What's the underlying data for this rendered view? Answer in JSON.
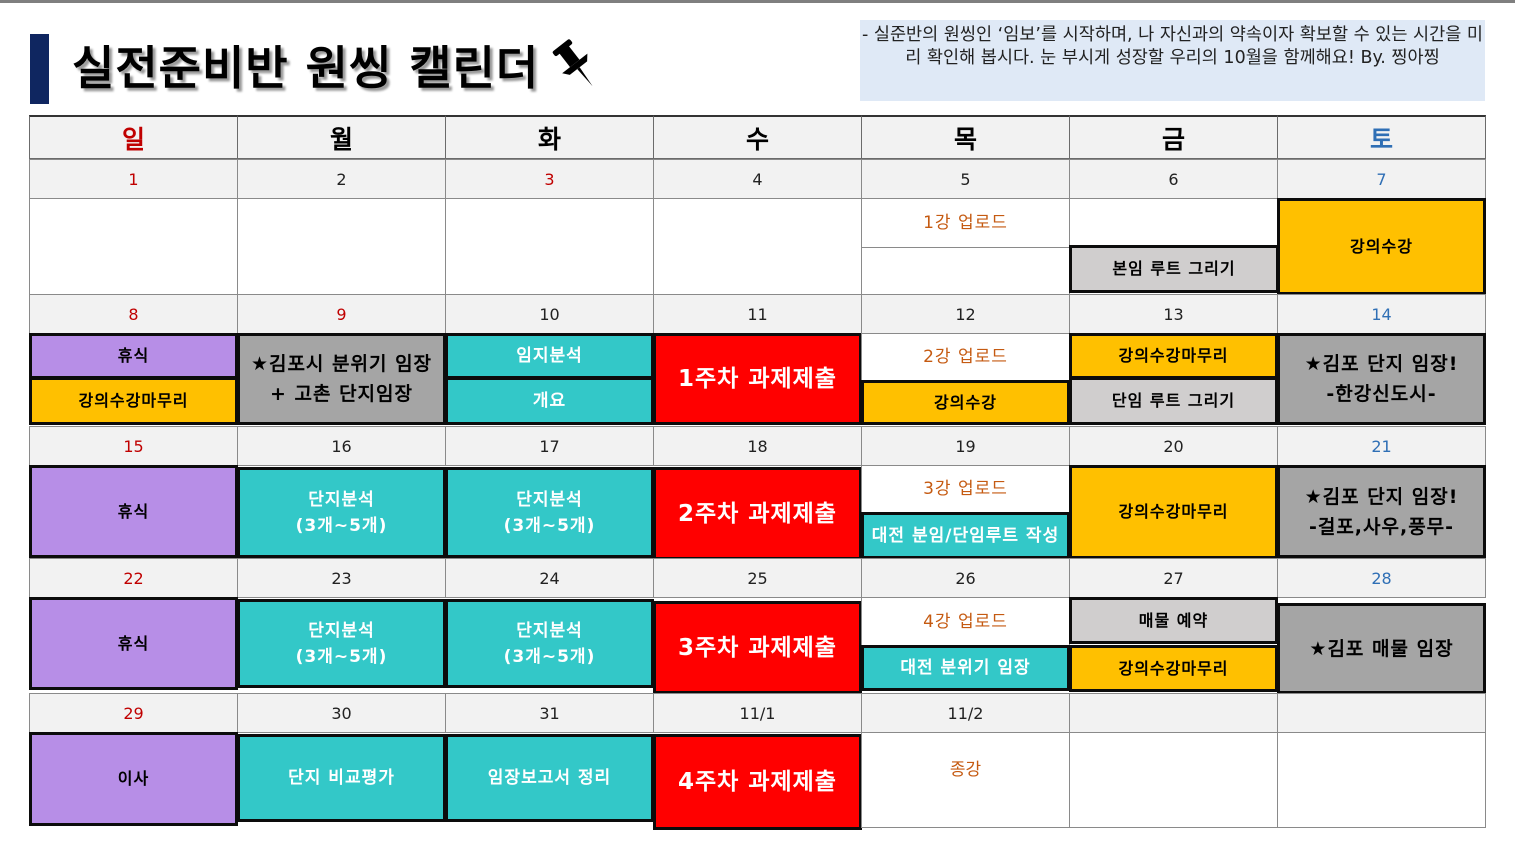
{
  "title": "실전준비반 원씽 캘린더",
  "note": "- 실준반의 원씽인 ‘임보’를 시작하며, 나 자신과의 약속이자 확보할 수 있는 시간을 미리 확인해 봅시다. 눈 부시게 성장할 우리의 10월을 함께해요! By. 찡아찡",
  "weekdays": [
    "일",
    "월",
    "화",
    "수",
    "목",
    "금",
    "토"
  ],
  "weeks": [
    {
      "dates": [
        "1",
        "2",
        "3",
        "4",
        "5",
        "6",
        "7"
      ]
    },
    {
      "dates": [
        "8",
        "9",
        "10",
        "11",
        "12",
        "13",
        "14"
      ]
    },
    {
      "dates": [
        "15",
        "16",
        "17",
        "18",
        "19",
        "20",
        "21"
      ]
    },
    {
      "dates": [
        "22",
        "23",
        "24",
        "25",
        "26",
        "27",
        "28"
      ]
    },
    {
      "dates": [
        "29",
        "30",
        "31",
        "11/1",
        "11/2",
        "",
        ""
      ]
    }
  ],
  "events": {
    "w1": {
      "thu": "1강 업로드",
      "fri": "본임 루트 그리기",
      "sat": "강의수강"
    },
    "w2": {
      "sun_a": "휴식",
      "sun_b": "강의수강마무리",
      "mon": "★김포시 분위기 임장\n+ 고촌 단지임장",
      "tue_a": "임지분석",
      "tue_b": "개요",
      "wed": "1주차 과제제출",
      "thu_a": "2강 업로드",
      "thu_b": "강의수강",
      "fri_a": "강의수강마무리",
      "fri_b": "단임 루트 그리기",
      "sat": "★김포 단지 임장!\n-한강신도시-"
    },
    "w3": {
      "sun": "휴식",
      "mon": "단지분석\n(3개~5개)",
      "tue": "단지분석\n(3개~5개)",
      "wed": "2주차 과제제출",
      "thu_a": "3강 업로드",
      "thu_b": "대전 분임/단임루트 작성",
      "fri": "강의수강마무리",
      "sat": "★김포 단지 임장!\n-걸포,사우,풍무-"
    },
    "w4": {
      "sun": "휴식",
      "mon": "단지분석\n(3개~5개)",
      "tue": "단지분석\n(3개~5개)",
      "wed": "3주차 과제제출",
      "thu_a": "4강 업로드",
      "thu_b": "대전 분위기 임장",
      "fri_a": "매물 예약",
      "fri_b": "강의수강마무리",
      "sat": "★김포 매물 임장"
    },
    "w5": {
      "sun": "이사",
      "mon": "단지 비교평가",
      "tue": "임장보고서 정리",
      "wed": "4주차 과제제출",
      "thu": "종강"
    }
  },
  "colors": {
    "rest": "#b78ee7",
    "lecture": "#ffc000",
    "field": "#a5a5a5",
    "route": "#d0cece",
    "analysis": "#33c8c8",
    "deadline": "#ff0000",
    "upload_text": "#c55a11",
    "sunday": "#c00000",
    "saturday": "#2f6fb5"
  },
  "icons": [
    "pushpin-icon"
  ]
}
